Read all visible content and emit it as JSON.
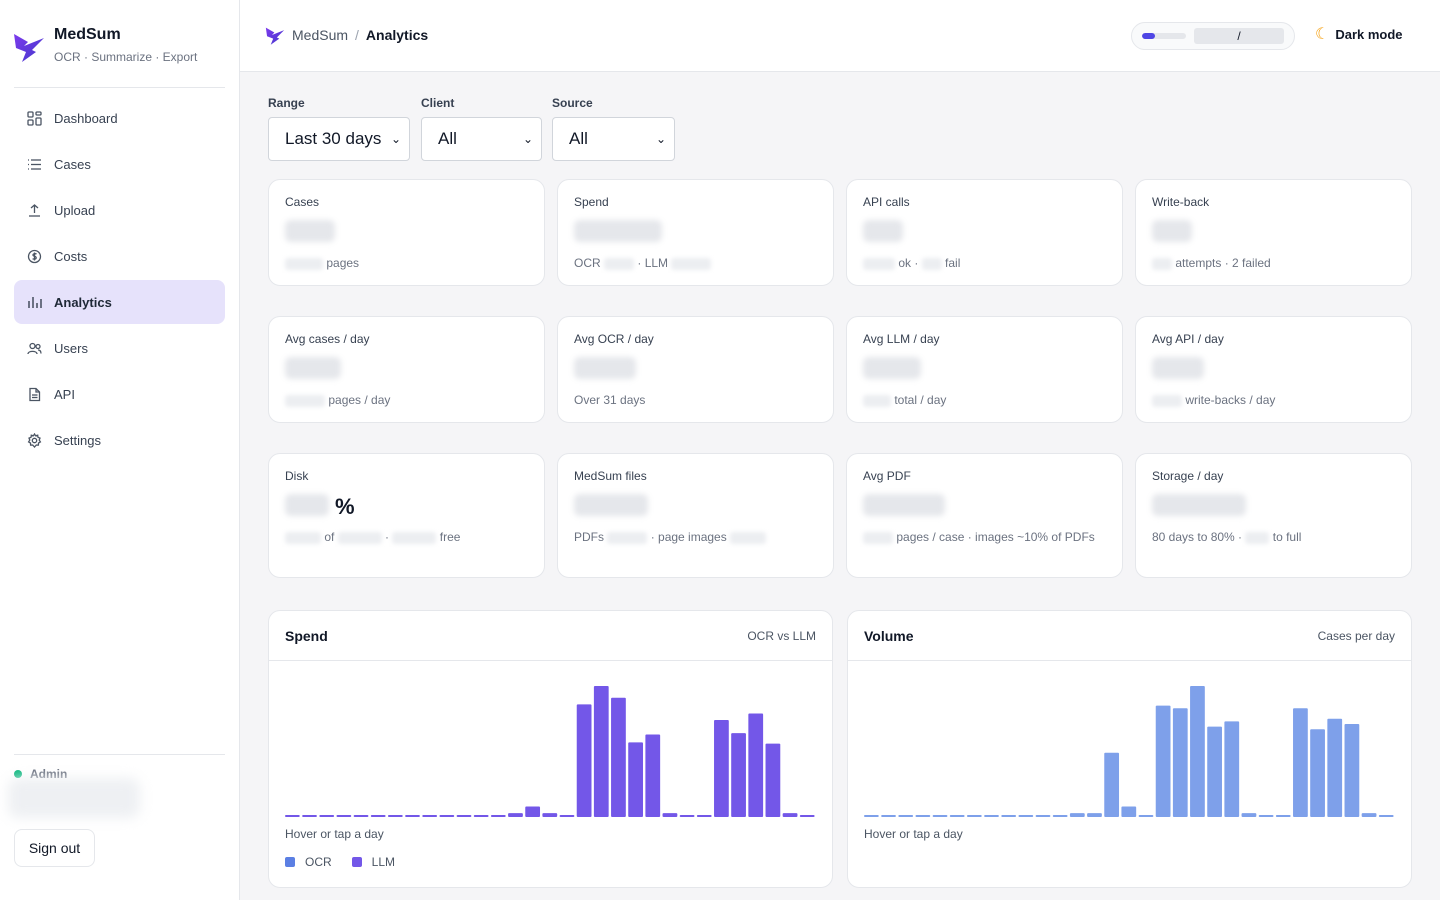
{
  "colors": {
    "accent": "#5b4fe0",
    "ocr": "#5b7fe3",
    "llm": "#7357e8",
    "volume": "#7ea0ea",
    "active_nav": "#e6e2fb",
    "online": "#10b981"
  },
  "brand": {
    "name": "MedSum",
    "tagline": "OCR · Summarize · Export",
    "logo_icon": "lightning-bolt-icon"
  },
  "nav": [
    {
      "label": "Dashboard",
      "icon": "dashboard-icon",
      "active": false
    },
    {
      "label": "Cases",
      "icon": "list-icon",
      "active": false
    },
    {
      "label": "Upload",
      "icon": "upload-icon",
      "active": false
    },
    {
      "label": "Costs",
      "icon": "dollar-icon",
      "active": false
    },
    {
      "label": "Analytics",
      "icon": "bar-chart-icon",
      "active": true
    },
    {
      "label": "Users",
      "icon": "users-icon",
      "active": false
    },
    {
      "label": "API",
      "icon": "document-icon",
      "active": false
    },
    {
      "label": "Settings",
      "icon": "gear-icon",
      "active": false
    }
  ],
  "user": {
    "role": "Admin",
    "signout": "Sign out"
  },
  "topbar": {
    "crumb_root": "MedSum",
    "crumb_sep": "/",
    "crumb_current": "Analytics",
    "usage_separator": "/",
    "usage_fill": 0.3,
    "dark_mode": "Dark mode"
  },
  "filters": {
    "range": {
      "label": "Range",
      "value": "Last 30 days"
    },
    "client": {
      "label": "Client",
      "value": "All"
    },
    "source": {
      "label": "Source",
      "value": "All"
    }
  },
  "stats": {
    "cases": {
      "label": "Cases",
      "sub": "pages"
    },
    "spend": {
      "label": "Spend",
      "sub_a": "OCR",
      "sub_b": "· LLM"
    },
    "api_calls": {
      "label": "API calls",
      "sub_a": "ok ·",
      "sub_b": "fail"
    },
    "write_back": {
      "label": "Write-back",
      "sub": "attempts · 2 failed"
    },
    "avg_cases": {
      "label": "Avg cases / day",
      "sub": "pages / day"
    },
    "avg_ocr": {
      "label": "Avg OCR / day",
      "sub": "Over 31 days"
    },
    "avg_llm": {
      "label": "Avg LLM / day",
      "sub": "total / day"
    },
    "avg_api": {
      "label": "Avg API / day",
      "sub": "write-backs / day"
    },
    "disk": {
      "label": "Disk",
      "unit": "%",
      "sub_a": "of",
      "sub_b": "·",
      "sub_c": "free"
    },
    "medsum_files": {
      "label": "MedSum files",
      "sub_a": "PDFs",
      "sub_b": "· page images"
    },
    "avg_pdf": {
      "label": "Avg PDF",
      "sub": "pages / case · images ~10% of PDFs"
    },
    "storage": {
      "label": "Storage / day",
      "sub_a": "80 days to 80% ·",
      "sub_b": "to full"
    }
  },
  "charts_meta": {
    "spend": {
      "title": "Spend",
      "note": "OCR vs LLM",
      "hint": "Hover or tap a day",
      "legend_ocr": "OCR",
      "legend_llm": "LLM"
    },
    "volume": {
      "title": "Volume",
      "note": "Cases per day",
      "hint": "Hover or tap a day"
    }
  },
  "chart_data": [
    {
      "type": "bar",
      "title": "Spend",
      "legend": [
        "OCR",
        "LLM"
      ],
      "legend_placement": "bottom-left",
      "grid": false,
      "ylim": [
        0,
        100
      ],
      "values": [
        1,
        1,
        1,
        1,
        1,
        1,
        1,
        1,
        1,
        1,
        1,
        1,
        1,
        3,
        8,
        3,
        1,
        86,
        100,
        91,
        57,
        63,
        3,
        1,
        1,
        74,
        64,
        79,
        56,
        3,
        1
      ]
    },
    {
      "type": "bar",
      "title": "Volume",
      "grid": false,
      "ylim": [
        0,
        100
      ],
      "values": [
        1,
        1,
        1,
        1,
        1,
        1,
        1,
        1,
        1,
        1,
        1,
        1,
        3,
        3,
        49,
        8,
        1,
        85,
        83,
        100,
        69,
        73,
        3,
        1,
        1,
        83,
        67,
        75,
        71,
        3,
        1
      ]
    }
  ]
}
